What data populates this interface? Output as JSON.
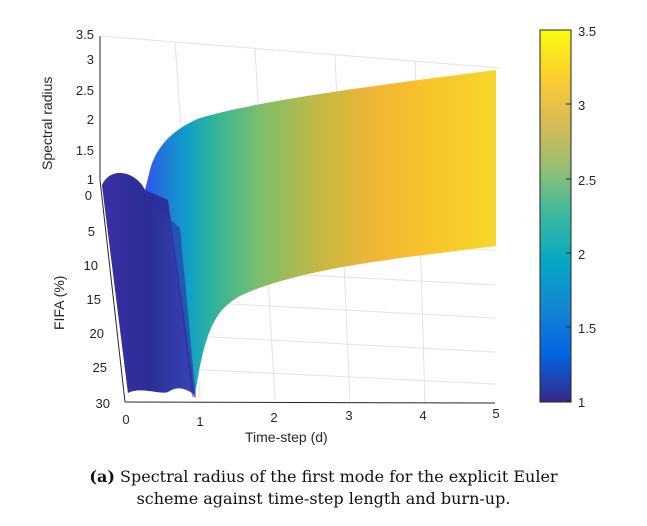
{
  "chart_data": {
    "type": "surface",
    "zlabel": "Spectral radius",
    "ylabel": "FIFA (%)",
    "xlabel": "Time-step (d)",
    "x_ticks": [
      "0",
      "1",
      "2",
      "3",
      "4",
      "5"
    ],
    "y_ticks": [
      "0",
      "5",
      "10",
      "15",
      "20",
      "25",
      "30"
    ],
    "z_ticks": [
      "1",
      "1.5",
      "2",
      "2.5",
      "3",
      "3.5"
    ],
    "xlim": [
      0,
      5
    ],
    "ylim": [
      0,
      30
    ],
    "zlim": [
      1,
      3.5
    ],
    "colorbar": {
      "ticks": [
        "1",
        "1.5",
        "2",
        "2.5",
        "3",
        "3.5"
      ],
      "range": [
        1,
        3.5
      ],
      "colormap": "parula"
    },
    "surface_profile": {
      "x": [
        0,
        0.3,
        0.5,
        0.8,
        1.0,
        1.5,
        2,
        3,
        4,
        5
      ],
      "spectral_radius": [
        1.05,
        1.1,
        1.15,
        1.4,
        2.2,
        2.55,
        2.7,
        2.9,
        3.0,
        3.1
      ]
    },
    "grid": true
  },
  "caption": {
    "label": "(a)",
    "text": "Spectral radius of the first mode for the explicit Euler scheme against time-step length and burn-up.",
    "line1": "Spectral radius of the first mode for the explicit Euler",
    "line2": "scheme against time-step length and burn-up."
  }
}
